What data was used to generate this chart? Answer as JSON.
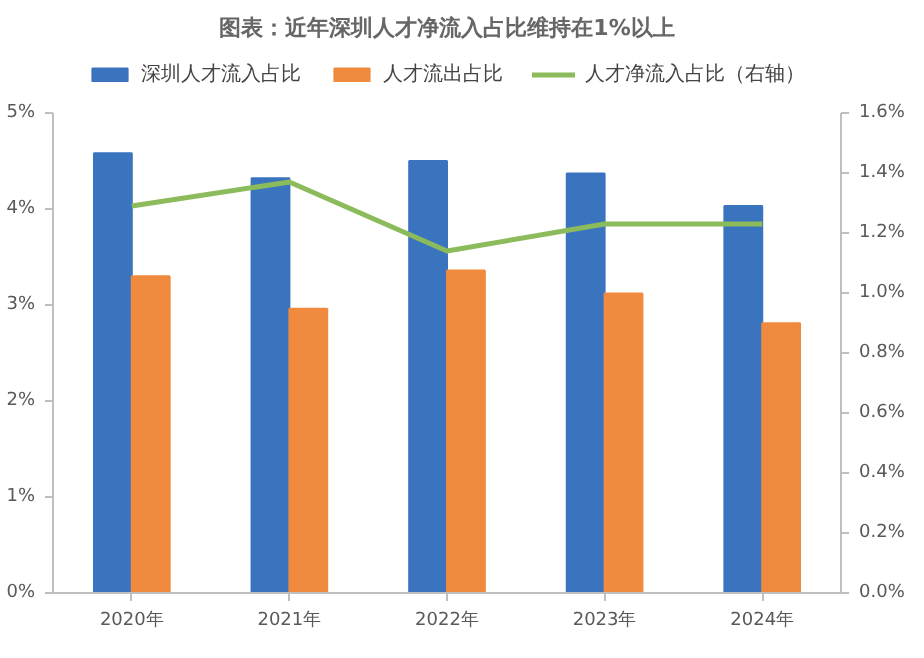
{
  "chart_data": {
    "type": "bar",
    "title": "图表：近年深圳人才净流入占比维持在1%以上",
    "categories": [
      "2020年",
      "2021年",
      "2022年",
      "2023年",
      "2024年"
    ],
    "series": [
      {
        "name": "深圳人才流入占比",
        "color": "#3a74bf",
        "values": [
          4.58,
          4.32,
          4.5,
          4.37,
          4.03
        ]
      },
      {
        "name": "人才流出占比",
        "color": "#ef8a3e",
        "values": [
          3.3,
          2.96,
          3.36,
          3.12,
          2.81
        ]
      },
      {
        "name": "人才净流入占比（右轴）",
        "type": "line",
        "axis": "y2",
        "color": "#8cbb5c",
        "values": [
          1.29,
          1.37,
          1.14,
          1.23,
          1.23
        ]
      }
    ],
    "ylim": [
      0,
      5
    ],
    "yticks": [
      {
        "value": 0,
        "label": "0%"
      },
      {
        "value": 1,
        "label": "1%"
      },
      {
        "value": 2,
        "label": "2%"
      },
      {
        "value": 3,
        "label": "3%"
      },
      {
        "value": 4,
        "label": "4%"
      },
      {
        "value": 5,
        "label": "5%"
      }
    ],
    "y2lim": [
      0,
      1.6
    ],
    "y2ticks": [
      {
        "value": 0,
        "label": "0.0%"
      },
      {
        "value": 0.2,
        "label": "0.2%"
      },
      {
        "value": 0.4,
        "label": "0.4%"
      },
      {
        "value": 0.6,
        "label": "0.6%"
      },
      {
        "value": 0.8,
        "label": "0.8%"
      },
      {
        "value": 1.0,
        "label": "1.0%"
      },
      {
        "value": 1.2,
        "label": "1.2%"
      },
      {
        "value": 1.4,
        "label": "1.4%"
      },
      {
        "value": 1.6,
        "label": "1.6%"
      }
    ],
    "grid": false,
    "legend": "top"
  }
}
